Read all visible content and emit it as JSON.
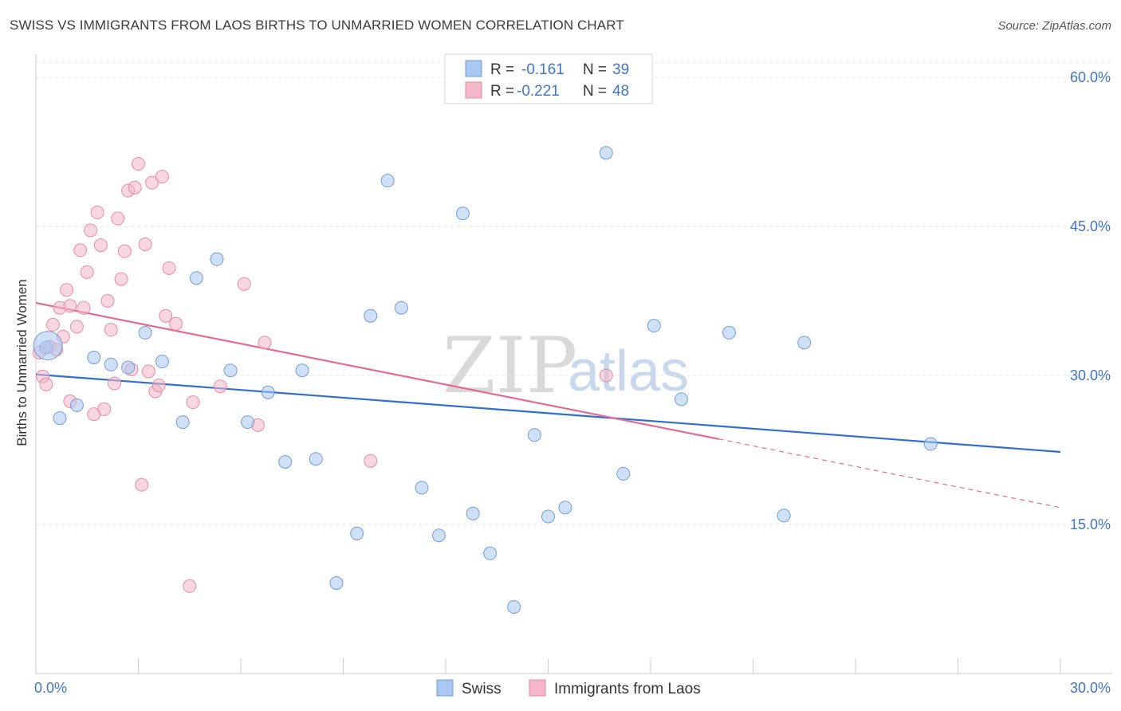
{
  "header": {
    "title": "SWISS VS IMMIGRANTS FROM LAOS BIRTHS TO UNMARRIED WOMEN CORRELATION CHART",
    "source": "Source: ZipAtlas.com"
  },
  "watermark": {
    "zip": "ZIP",
    "atlas": "atlas"
  },
  "legend_top": {
    "rows": [
      {
        "r_label": "R =",
        "r_value": "-0.161",
        "n_label": "N =",
        "n_value": "39",
        "color": "#a9c7f0"
      },
      {
        "r_label": "R =",
        "r_value": "-0.221",
        "n_label": "N =",
        "n_value": "48",
        "color": "#f4b6c8"
      }
    ]
  },
  "legend_bottom": {
    "items": [
      {
        "label": "Swiss",
        "color": "#a9c7f0"
      },
      {
        "label": "Immigrants from Laos",
        "color": "#f4b6c8"
      }
    ]
  },
  "chart_data": {
    "type": "scatter",
    "title": "SWISS VS IMMIGRANTS FROM LAOS BIRTHS TO UNMARRIED WOMEN CORRELATION CHART",
    "xlabel": "",
    "ylabel": "Births to Unmarried Women",
    "xlim": [
      0,
      30
    ],
    "ylim": [
      0,
      60
    ],
    "x_tick_labels": [
      "0.0%",
      "30.0%"
    ],
    "y_ticks": [
      15,
      30,
      45,
      60
    ],
    "y_tick_labels": [
      "15.0%",
      "30.0%",
      "45.0%",
      "60.0%"
    ],
    "grid": true,
    "legend_position": "top-center",
    "series": [
      {
        "name": "Swiss",
        "color": "#a9c7f0",
        "stroke": "#6f9fd8",
        "trend_color": "#2f6fd0",
        "trend": {
          "x0": 0,
          "y0": 30.1,
          "x1": 30,
          "y1": 22.3
        },
        "points": [
          [
            0.3,
            32.8
          ],
          [
            0.7,
            25.7
          ],
          [
            1.2,
            27.0
          ],
          [
            1.7,
            31.8
          ],
          [
            2.2,
            31.1
          ],
          [
            2.7,
            30.8
          ],
          [
            3.2,
            34.3
          ],
          [
            3.7,
            31.4
          ],
          [
            4.3,
            25.3
          ],
          [
            4.7,
            39.8
          ],
          [
            5.3,
            41.7
          ],
          [
            5.7,
            30.5
          ],
          [
            6.2,
            25.3
          ],
          [
            6.8,
            28.3
          ],
          [
            7.3,
            21.3
          ],
          [
            7.8,
            30.5
          ],
          [
            8.2,
            21.6
          ],
          [
            8.8,
            9.1
          ],
          [
            9.4,
            14.1
          ],
          [
            9.8,
            36.0
          ],
          [
            10.3,
            49.6
          ],
          [
            10.7,
            36.8
          ],
          [
            11.3,
            18.7
          ],
          [
            11.8,
            13.9
          ],
          [
            12.5,
            46.3
          ],
          [
            12.8,
            16.1
          ],
          [
            13.3,
            12.1
          ],
          [
            14.0,
            6.7
          ],
          [
            14.6,
            24.0
          ],
          [
            15.0,
            15.8
          ],
          [
            15.5,
            16.7
          ],
          [
            16.7,
            52.4
          ],
          [
            17.2,
            20.1
          ],
          [
            18.1,
            35.0
          ],
          [
            18.9,
            27.6
          ],
          [
            20.3,
            34.3
          ],
          [
            21.9,
            15.9
          ],
          [
            22.5,
            33.3
          ],
          [
            26.2,
            23.1
          ]
        ]
      },
      {
        "name": "Immigrants from Laos",
        "color": "#f4b6c8",
        "stroke": "#e88aa6",
        "trend_color": "#e46a95",
        "trend": {
          "x0": 0,
          "y0": 37.3,
          "x1": 20.0,
          "y1": 23.6
        },
        "trend_dashed": {
          "x0": 20.0,
          "y0": 23.6,
          "x1": 30.0,
          "y1": 16.7
        },
        "points": [
          [
            0.1,
            32.3
          ],
          [
            0.2,
            29.9
          ],
          [
            0.3,
            29.1
          ],
          [
            0.4,
            32.9
          ],
          [
            0.5,
            35.1
          ],
          [
            0.6,
            32.6
          ],
          [
            0.7,
            36.8
          ],
          [
            0.8,
            33.9
          ],
          [
            0.9,
            38.6
          ],
          [
            1.0,
            37.0
          ],
          [
            1.0,
            27.4
          ],
          [
            1.2,
            34.9
          ],
          [
            1.3,
            42.6
          ],
          [
            1.4,
            36.8
          ],
          [
            1.5,
            40.4
          ],
          [
            1.6,
            44.6
          ],
          [
            1.7,
            26.1
          ],
          [
            1.8,
            46.4
          ],
          [
            1.9,
            43.1
          ],
          [
            2.0,
            26.6
          ],
          [
            2.1,
            37.5
          ],
          [
            2.2,
            34.6
          ],
          [
            2.3,
            29.2
          ],
          [
            2.4,
            45.8
          ],
          [
            2.5,
            39.7
          ],
          [
            2.6,
            42.5
          ],
          [
            2.7,
            48.6
          ],
          [
            2.8,
            30.6
          ],
          [
            2.9,
            48.9
          ],
          [
            3.0,
            51.3
          ],
          [
            3.1,
            19.0
          ],
          [
            3.2,
            43.2
          ],
          [
            3.3,
            30.4
          ],
          [
            3.4,
            49.4
          ],
          [
            3.5,
            28.4
          ],
          [
            3.6,
            29.0
          ],
          [
            3.7,
            50.0
          ],
          [
            3.8,
            36.0
          ],
          [
            3.9,
            40.8
          ],
          [
            4.1,
            35.2
          ],
          [
            4.5,
            8.8
          ],
          [
            4.6,
            27.3
          ],
          [
            5.4,
            28.9
          ],
          [
            6.1,
            39.2
          ],
          [
            6.5,
            25.0
          ],
          [
            6.7,
            33.3
          ],
          [
            9.8,
            21.4
          ],
          [
            16.7,
            30.0
          ]
        ]
      }
    ]
  }
}
